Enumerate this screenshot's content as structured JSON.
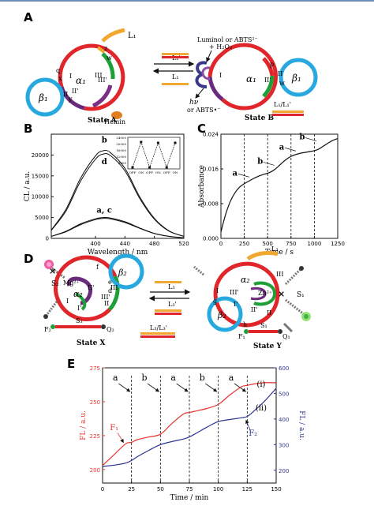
{
  "panels": {
    "A": {
      "letter": "A",
      "state_a_label": "State A",
      "state_b_label": "State B",
      "hemin": "Hemin",
      "reagent_line1": "Luminol or ABTS²⁻",
      "reagent_line2": "+ H₂O₂",
      "hv": "hν",
      "product": "or ABTS•⁻",
      "arrow_top": "L₁'",
      "arrow_bottom": "L₁",
      "strand_pair": "L₁/L₁'",
      "l1": "L₁",
      "alpha1": "α₁",
      "beta1": "β₁",
      "roman_1": "I",
      "roman_2": "II",
      "roman_3": "III",
      "roman_1p": "I'",
      "roman_2p": "II'",
      "roman_3p": "III'",
      "z": "z",
      "w": "w",
      "q": "q",
      "x": "x",
      "y": "y",
      "p": "p"
    },
    "B": {
      "letter": "B",
      "ylabel": "CL / a.u.",
      "xlabel": "Wavelength / nm",
      "label_b": "b",
      "label_d": "d",
      "label_ac": "a, c",
      "inset_x": [
        "OFF",
        "ON",
        "OFF",
        "ON",
        "OFF",
        "ON"
      ],
      "inset_y": [
        "8000",
        "12000",
        "16000",
        "20000",
        "24000"
      ]
    },
    "C": {
      "letter": "C",
      "ylabel": "Absorbance",
      "xlabel": "Time / s",
      "labels": [
        "a",
        "b",
        "a",
        "b"
      ]
    },
    "D": {
      "letter": "D",
      "state_x_label": "State X",
      "state_y_label": "State Y",
      "arrow_top": "L₃",
      "arrow_bottom": "L₃'",
      "strand_pair": "L₃/L₃'",
      "l3": "L₃",
      "mg": "Mg²⁺",
      "zn": "Zn²⁺",
      "s1": "S₁",
      "s2": "S₂",
      "s3": "S₃",
      "f1": "F₁",
      "f2": "F₂",
      "q1": "Q₁",
      "q2": "Q₂",
      "alpha2": "α₂",
      "beta2": "β₂",
      "roman_1": "I",
      "roman_2": "II",
      "roman_3": "III",
      "roman_1p": "I'",
      "roman_2p": "II'",
      "roman_3p": "III'",
      "f": "f",
      "e": "e",
      "d": "d",
      "g": "g",
      "h": "h"
    },
    "E": {
      "letter": "E",
      "ylabel_left": "FL / a.u.",
      "ylabel_right": "FL / a.u.",
      "xlabel": "Time / min",
      "labels": [
        "a",
        "b",
        "a",
        "b",
        "a"
      ],
      "curve_i": "(i)",
      "curve_ii": "(ii)",
      "f1": "F₁",
      "f2": "F₂"
    }
  },
  "chart_data": [
    {
      "type": "line",
      "panel": "B",
      "xlabel": "Wavelength / nm",
      "ylabel": "CL / a.u.",
      "xlim": [
        340,
        520
      ],
      "ylim": [
        0,
        25000
      ],
      "xticks": [
        400,
        440,
        480,
        520
      ],
      "yticks": [
        0,
        5000,
        10000,
        15000,
        20000
      ],
      "x": [
        340,
        360,
        380,
        400,
        410,
        420,
        440,
        460,
        480,
        500,
        520
      ],
      "series": [
        {
          "name": "b",
          "values": [
            2000,
            7000,
            14500,
            19800,
            21000,
            20600,
            16800,
            10000,
            4800,
            1800,
            500
          ]
        },
        {
          "name": "d",
          "values": [
            1900,
            6600,
            13800,
            19000,
            20200,
            19900,
            16200,
            9600,
            4600,
            1700,
            480
          ]
        },
        {
          "name": "a",
          "values": [
            500,
            1700,
            3500,
            4700,
            5000,
            4900,
            4000,
            2500,
            1200,
            500,
            150
          ]
        },
        {
          "name": "c",
          "values": [
            480,
            1600,
            3300,
            4500,
            4800,
            4700,
            3800,
            2400,
            1150,
            480,
            140
          ]
        }
      ],
      "inset": {
        "categories": [
          "OFF",
          "ON",
          "OFF",
          "ON",
          "OFF",
          "ON"
        ],
        "values": [
          5000,
          21000,
          5000,
          20500,
          5000,
          20500
        ],
        "ylim": [
          4000,
          24000
        ],
        "yticks": [
          8000,
          12000,
          16000,
          20000,
          24000
        ]
      }
    },
    {
      "type": "line",
      "panel": "C",
      "xlabel": "Time / s",
      "ylabel": "Absorbance",
      "xlim": [
        0,
        1250
      ],
      "ylim": [
        0,
        0.024
      ],
      "xticks": [
        0,
        250,
        500,
        750,
        1000,
        1250
      ],
      "yticks": [
        0.0,
        0.008,
        0.016,
        0.024
      ],
      "x": [
        0,
        50,
        100,
        150,
        200,
        250,
        300,
        350,
        400,
        450,
        500,
        550,
        600,
        650,
        700,
        750,
        800,
        850,
        900,
        950,
        1000,
        1050,
        1100,
        1150,
        1200,
        1250
      ],
      "values": [
        0.0015,
        0.0055,
        0.0085,
        0.0105,
        0.0118,
        0.0126,
        0.0132,
        0.0138,
        0.0143,
        0.0147,
        0.015,
        0.0155,
        0.0163,
        0.0173,
        0.0182,
        0.0189,
        0.0193,
        0.0196,
        0.0198,
        0.02,
        0.0202,
        0.0206,
        0.0213,
        0.022,
        0.0226,
        0.023
      ],
      "dividers": [
        250,
        500,
        750,
        1000
      ],
      "segment_labels": [
        "a",
        "b",
        "a",
        "b"
      ]
    },
    {
      "type": "line",
      "panel": "E",
      "xlabel": "Time / min",
      "ylabel": "FL / a.u.",
      "xlim": [
        0,
        150
      ],
      "ylim_left": [
        190,
        275
      ],
      "ylim_right": [
        150,
        600
      ],
      "xticks": [
        0,
        25,
        50,
        75,
        100,
        125,
        150
      ],
      "yticks_left": [
        200,
        225,
        250,
        275
      ],
      "yticks_right": [
        200,
        300,
        400,
        500,
        600
      ],
      "x": [
        0,
        10,
        20,
        25,
        30,
        40,
        50,
        60,
        70,
        75,
        80,
        90,
        100,
        110,
        120,
        125,
        130,
        140,
        150
      ],
      "series": [
        {
          "name": "F₁",
          "axis": "left",
          "color": "#e8322c",
          "values": [
            203,
            211,
            219,
            220,
            222,
            224,
            226,
            234,
            241,
            242,
            243,
            245,
            248,
            255,
            261,
            262,
            263,
            264,
            264
          ]
        },
        {
          "name": "F₂",
          "axis": "right",
          "color": "#2c3591",
          "values": [
            215,
            220,
            228,
            238,
            253,
            278,
            300,
            312,
            322,
            330,
            342,
            368,
            390,
            398,
            405,
            410,
            428,
            470,
            520
          ]
        }
      ],
      "dividers": [
        25,
        50,
        75,
        100,
        125
      ],
      "segment_labels": [
        "a",
        "b",
        "a",
        "b",
        "a"
      ]
    }
  ]
}
